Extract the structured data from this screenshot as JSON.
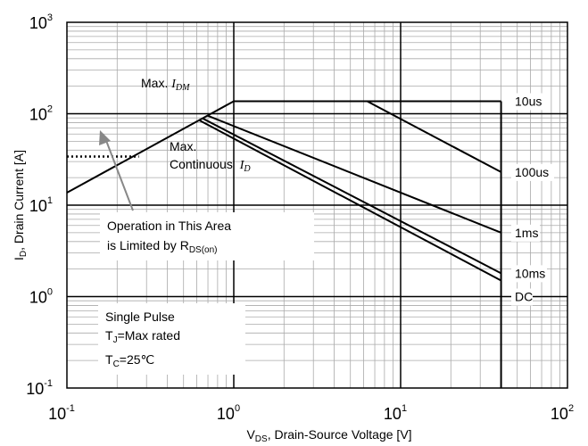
{
  "chart_data": {
    "type": "line",
    "scale": {
      "x": "log",
      "y": "log"
    },
    "xlim": [
      0.1,
      100
    ],
    "ylim": [
      0.1,
      1000
    ],
    "grid": true,
    "x_ticks": [
      {
        "base": "10",
        "exp": "-1"
      },
      {
        "base": "10",
        "exp": "0"
      },
      {
        "base": "10",
        "exp": "1"
      },
      {
        "base": "10",
        "exp": "2"
      }
    ],
    "y_ticks": [
      {
        "base": "10",
        "exp": "-1"
      },
      {
        "base": "10",
        "exp": "0"
      },
      {
        "base": "10",
        "exp": "1"
      },
      {
        "base": "10",
        "exp": "2"
      },
      {
        "base": "10",
        "exp": "3"
      }
    ],
    "xlabel": {
      "main": "V",
      "sub": "DS",
      "rest": ", Drain-Source Voltage [V]"
    },
    "ylabel": {
      "main": "I",
      "sub": "D",
      "rest": ", Drain Current [A]"
    },
    "series": [
      {
        "name": "10us",
        "points": [
          [
            0.1,
            13.7
          ],
          [
            1.0,
            137
          ],
          [
            40,
            137
          ]
        ]
      },
      {
        "name": "100us",
        "points": [
          [
            1.35,
            137
          ],
          [
            6.3,
            137
          ],
          [
            40,
            23
          ]
        ]
      },
      {
        "name": "1ms",
        "points": [
          [
            0.7,
            95
          ],
          [
            40,
            5.0
          ]
        ]
      },
      {
        "name": "10ms",
        "points": [
          [
            0.65,
            89
          ],
          [
            40,
            1.8
          ]
        ]
      },
      {
        "name": "DC",
        "points": [
          [
            0.62,
            85
          ],
          [
            40,
            1.5
          ]
        ]
      }
    ],
    "reference_lines": [
      {
        "type": "vertical",
        "x": 40
      },
      {
        "type": "dotted",
        "y": 34,
        "x_range": [
          0.1,
          0.27
        ]
      }
    ],
    "annotations": {
      "idm": {
        "text": "Max. ",
        "ital": "I",
        "ital_sub": "DM"
      },
      "max_continuous": {
        "line1": "Max.",
        "line2": "Continuous ",
        "ital": "I",
        "ital_sub": "D"
      },
      "rdson": {
        "line1": "Operation in This Area",
        "line2": "is Limited by R",
        "line2_sub": "DS(on)"
      },
      "conditions": {
        "line1": "Single Pulse",
        "line2_main": "T",
        "line2_sub": "J",
        "line2_rest": "=Max rated",
        "line3_main": "T",
        "line3_sub": "C",
        "line3_rest": "=25℃"
      }
    }
  }
}
